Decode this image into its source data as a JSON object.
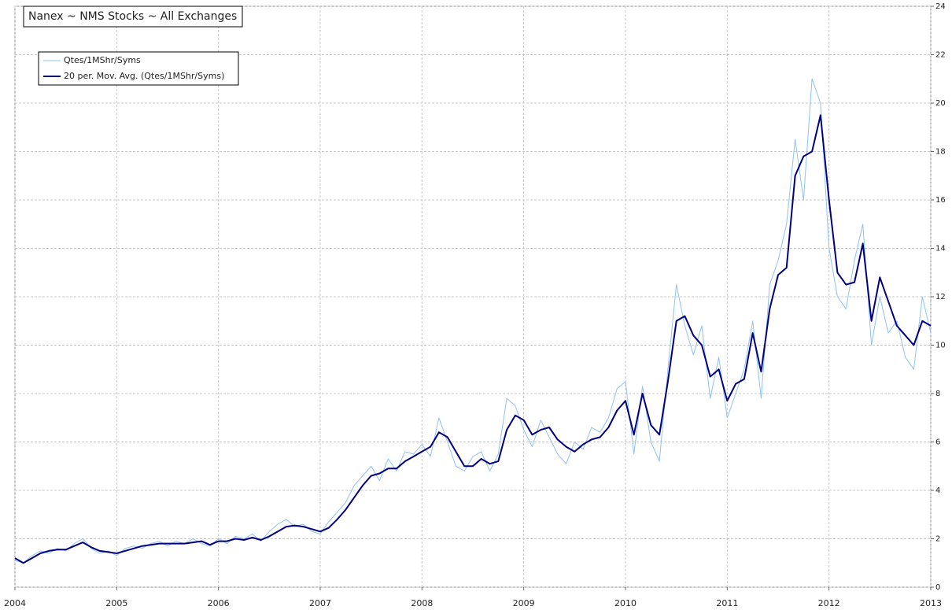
{
  "chart_data": {
    "type": "line",
    "title": "Nanex ~ NMS Stocks ~ All Exchanges",
    "x": [
      2004,
      2004.083,
      2004.167,
      2004.25,
      2004.333,
      2004.417,
      2004.5,
      2004.583,
      2004.667,
      2004.75,
      2004.833,
      2004.917,
      2005,
      2005.083,
      2005.167,
      2005.25,
      2005.333,
      2005.417,
      2005.5,
      2005.583,
      2005.667,
      2005.75,
      2005.833,
      2005.917,
      2006,
      2006.083,
      2006.167,
      2006.25,
      2006.333,
      2006.417,
      2006.5,
      2006.583,
      2006.667,
      2006.75,
      2006.833,
      2006.917,
      2007,
      2007.083,
      2007.167,
      2007.25,
      2007.333,
      2007.417,
      2007.5,
      2007.583,
      2007.667,
      2007.75,
      2007.833,
      2007.917,
      2008,
      2008.083,
      2008.167,
      2008.25,
      2008.333,
      2008.417,
      2008.5,
      2008.583,
      2008.667,
      2008.75,
      2008.833,
      2008.917,
      2009,
      2009.083,
      2009.167,
      2009.25,
      2009.333,
      2009.417,
      2009.5,
      2009.583,
      2009.667,
      2009.75,
      2009.833,
      2009.917,
      2010,
      2010.083,
      2010.167,
      2010.25,
      2010.333,
      2010.417,
      2010.5,
      2010.583,
      2010.667,
      2010.75,
      2010.833,
      2010.917,
      2011,
      2011.083,
      2011.167,
      2011.25,
      2011.333,
      2011.417,
      2011.5,
      2011.583,
      2011.667,
      2011.75,
      2011.833,
      2011.917,
      2012,
      2012.083,
      2012.167,
      2012.25,
      2012.333,
      2012.417,
      2012.5,
      2012.583,
      2012.667,
      2012.75,
      2012.833,
      2012.917,
      2013
    ],
    "series": [
      {
        "name": "Qtes/1MShr/Syms",
        "color": "#8ec2f2",
        "width": 1,
        "values": [
          1.1,
          1.0,
          1.3,
          1.5,
          1.4,
          1.6,
          1.5,
          1.8,
          2.0,
          1.6,
          1.4,
          1.5,
          1.3,
          1.6,
          1.7,
          1.6,
          1.8,
          1.9,
          1.7,
          1.9,
          1.8,
          2.0,
          1.8,
          1.7,
          2.0,
          1.8,
          2.1,
          2.0,
          2.2,
          1.9,
          2.3,
          2.6,
          2.8,
          2.5,
          2.6,
          2.3,
          2.2,
          2.7,
          3.1,
          3.5,
          4.2,
          4.6,
          5.0,
          4.4,
          5.3,
          4.8,
          5.6,
          5.5,
          5.9,
          5.4,
          7.0,
          6.0,
          5.0,
          4.8,
          5.4,
          5.6,
          4.8,
          5.5,
          7.8,
          7.5,
          6.5,
          5.8,
          6.9,
          6.2,
          5.5,
          5.1,
          6.0,
          5.7,
          6.6,
          6.4,
          7.0,
          8.2,
          8.5,
          5.5,
          8.3,
          6.0,
          5.2,
          9.0,
          12.5,
          10.8,
          9.6,
          10.8,
          7.8,
          9.5,
          7.0,
          8.0,
          9.0,
          11.0,
          7.8,
          12.5,
          13.5,
          15.0,
          18.5,
          16.0,
          21.0,
          20.0,
          14.0,
          12.0,
          11.5,
          13.5,
          15.0,
          10.0,
          12.0,
          10.5,
          11.0,
          9.5,
          9.0,
          12.0,
          10.5
        ]
      },
      {
        "name": "20 per. Mov. Avg. (Qtes/1MShr/Syms)",
        "color": "#000080",
        "width": 2,
        "values": [
          1.2,
          1.0,
          1.2,
          1.4,
          1.5,
          1.55,
          1.55,
          1.7,
          1.85,
          1.65,
          1.5,
          1.45,
          1.4,
          1.5,
          1.6,
          1.7,
          1.75,
          1.8,
          1.8,
          1.8,
          1.8,
          1.85,
          1.9,
          1.75,
          1.9,
          1.9,
          2.0,
          1.95,
          2.05,
          1.95,
          2.1,
          2.3,
          2.5,
          2.55,
          2.5,
          2.4,
          2.3,
          2.45,
          2.8,
          3.2,
          3.7,
          4.2,
          4.6,
          4.7,
          4.9,
          4.9,
          5.2,
          5.4,
          5.6,
          5.8,
          6.4,
          6.2,
          5.6,
          5.0,
          5.0,
          5.3,
          5.1,
          5.2,
          6.5,
          7.1,
          6.9,
          6.3,
          6.5,
          6.6,
          6.1,
          5.8,
          5.6,
          5.9,
          6.1,
          6.2,
          6.6,
          7.3,
          7.7,
          6.3,
          8.0,
          6.7,
          6.3,
          8.5,
          11.0,
          11.2,
          10.4,
          10.0,
          8.7,
          9.0,
          7.7,
          8.4,
          8.6,
          10.5,
          8.9,
          11.5,
          12.9,
          13.2,
          17.0,
          17.8,
          18.0,
          19.5,
          16.0,
          13.0,
          12.5,
          12.6,
          14.2,
          11.0,
          12.8,
          11.8,
          10.8,
          10.4,
          10.0,
          11.0,
          10.8
        ]
      }
    ],
    "xlim": [
      2004,
      2013
    ],
    "xticks": [
      2004,
      2005,
      2006,
      2007,
      2008,
      2009,
      2010,
      2011,
      2012,
      2013
    ],
    "ylim": [
      0,
      24
    ],
    "yticks": [
      0,
      2,
      4,
      6,
      8,
      10,
      12,
      14,
      16,
      18,
      20,
      22,
      24
    ],
    "grid": true,
    "legend": "upper left"
  }
}
